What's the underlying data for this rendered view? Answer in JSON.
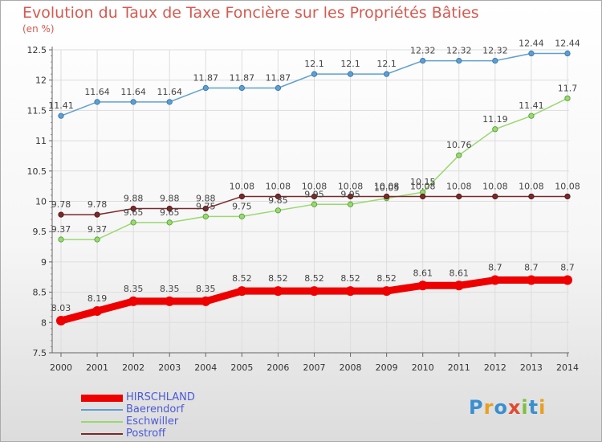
{
  "title": "Evolution du Taux de Taxe Foncière sur les Propriétés Bâties",
  "subtitle": "(en %)",
  "logo": "Proxiti",
  "chart_data": {
    "type": "line",
    "title": "Evolution du Taux de Taxe Foncière sur les Propriétés Bâties",
    "ylabel": "(en %)",
    "xlabel": "",
    "ylim": [
      7.5,
      12.5
    ],
    "yticks": [
      "7.5",
      "8",
      "8.5",
      "9",
      "9.5",
      "10",
      "10.5",
      "11",
      "11.5",
      "12",
      "12.5"
    ],
    "grid": true,
    "legend_position": "bottom-left",
    "categories": [
      "2000",
      "2001",
      "2002",
      "2003",
      "2004",
      "2005",
      "2006",
      "2007",
      "2008",
      "2009",
      "2010",
      "2011",
      "2012",
      "2013",
      "2014"
    ],
    "series": [
      {
        "name": "HIRSCHLAND",
        "color": "#ee0000",
        "values": [
          8.03,
          8.19,
          8.35,
          8.35,
          8.35,
          8.52,
          8.52,
          8.52,
          8.52,
          8.52,
          8.61,
          8.61,
          8.7,
          8.7,
          8.7
        ],
        "labels": [
          "8.03",
          "8.19",
          "8.35",
          "8.35",
          "8.35",
          "8.52",
          "8.52",
          "8.52",
          "8.52",
          "8.52",
          "8.61",
          "8.61",
          "8.7",
          "8.7",
          "8.7"
        ]
      },
      {
        "name": "Baerendorf",
        "color": "#5f9fd0",
        "values": [
          11.41,
          11.64,
          11.64,
          11.64,
          11.87,
          11.87,
          11.87,
          12.1,
          12.1,
          12.1,
          12.32,
          12.32,
          12.32,
          12.44,
          12.44
        ],
        "labels": [
          "11.41",
          "11.64",
          "11.64",
          "11.64",
          "11.87",
          "11.87",
          "11.87",
          "12.1",
          "12.1",
          "12.1",
          "12.32",
          "12.32",
          "12.32",
          "12.44",
          "12.44"
        ]
      },
      {
        "name": "Eschwiller",
        "color": "#9ad870",
        "values": [
          9.37,
          9.37,
          9.65,
          9.65,
          9.75,
          9.75,
          9.85,
          9.95,
          9.95,
          10.05,
          10.15,
          10.76,
          11.19,
          11.41,
          11.7
        ],
        "labels": [
          "9.37",
          "9.37",
          "9.65",
          "9.65",
          "9.75",
          "9.75",
          "9.85",
          "9.95",
          "9.95",
          "10.05",
          "10.15",
          "10.76",
          "11.19",
          "11.41",
          "11.7"
        ]
      },
      {
        "name": "Postroff",
        "color": "#7a2a2a",
        "values": [
          9.78,
          9.78,
          9.88,
          9.88,
          9.88,
          10.08,
          10.08,
          10.08,
          10.08,
          10.08,
          10.08,
          10.08,
          10.08,
          10.08,
          10.08
        ],
        "labels": [
          "9.78",
          "9.78",
          "9.88",
          "9.88",
          "9.88",
          "10.08",
          "10.08",
          "10.08",
          "10.08",
          "10.08",
          "10.08",
          "10.08",
          "10.08",
          "10.08",
          "10.08"
        ]
      }
    ]
  }
}
